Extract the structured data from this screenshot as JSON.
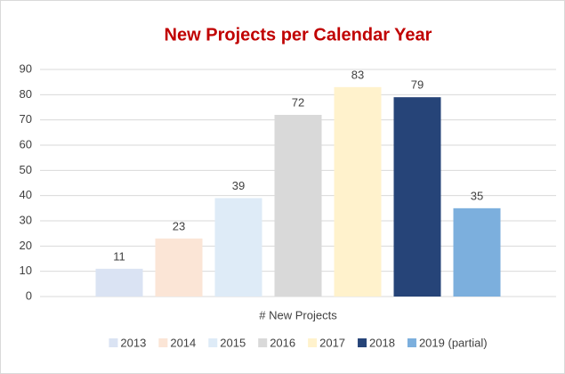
{
  "chart_data": {
    "type": "bar",
    "title": "New Projects per Calendar Year",
    "categories": [
      "# New Projects"
    ],
    "series": [
      {
        "name": "2013",
        "color": "#dae3f3",
        "values": [
          11
        ]
      },
      {
        "name": "2014",
        "color": "#fbe5d6",
        "values": [
          23
        ]
      },
      {
        "name": "2015",
        "color": "#deebf7",
        "values": [
          39
        ]
      },
      {
        "name": "2016",
        "color": "#d9d9d9",
        "values": [
          72
        ]
      },
      {
        "name": "2017",
        "color": "#fff2cc",
        "values": [
          83
        ]
      },
      {
        "name": "2018",
        "color": "#264478",
        "values": [
          79
        ]
      },
      {
        "name": "2019 (partial)",
        "color": "#7cafdd",
        "values": [
          35
        ]
      }
    ],
    "ylim": [
      0,
      90
    ],
    "yticks": [
      0,
      10,
      20,
      30,
      40,
      50,
      60,
      70,
      80,
      90
    ],
    "grid": true,
    "legend": "bottom",
    "data_labels": true
  }
}
